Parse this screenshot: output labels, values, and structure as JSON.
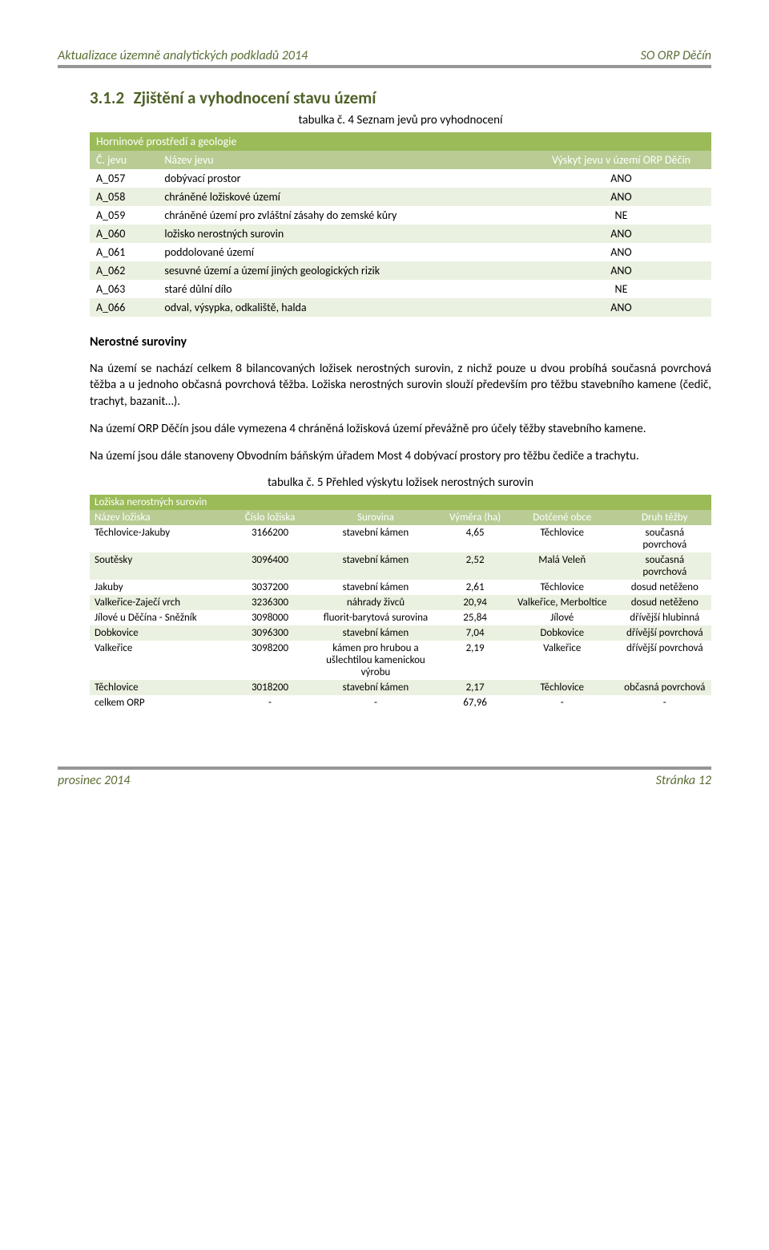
{
  "header": {
    "left": "Aktualizace územně analytických podkladů 2014",
    "right": "SO ORP Děčín"
  },
  "section": {
    "number": "3.1.2",
    "title": "Zjištění a vyhodnocení stavu území"
  },
  "caption1": "tabulka č. 4  Seznam jevů pro vyhodnocení",
  "table1": {
    "title": "Horninové prostředí a geologie",
    "cols": [
      "Č. jevu",
      "Název jevu",
      "Výskyt jevu v území ORP Děčín"
    ],
    "rows": [
      {
        "c1": "A_057",
        "c2": "dobývací prostor",
        "c3": "ANO"
      },
      {
        "c1": "A_058",
        "c2": "chráněné ložiskové území",
        "c3": "ANO"
      },
      {
        "c1": "A_059",
        "c2": "chráněné území pro zvláštní zásahy do zemské kůry",
        "c3": "NE"
      },
      {
        "c1": "A_060",
        "c2": "ložisko nerostných surovin",
        "c3": "ANO"
      },
      {
        "c1": "A_061",
        "c2": "poddolované území",
        "c3": "ANO"
      },
      {
        "c1": "A_062",
        "c2": "sesuvné území a území jiných geologických rizik",
        "c3": "ANO"
      },
      {
        "c1": "A_063",
        "c2": "staré důlní dílo",
        "c3": "NE"
      },
      {
        "c1": "A_066",
        "c2": "odval, výsypka, odkaliště, halda",
        "c3": "ANO"
      }
    ]
  },
  "subhead1": "Nerostné suroviny",
  "para1": "Na území se nachází celkem 8 bilancovaných ložisek nerostných surovin, z nichž pouze u dvou probíhá současná povrchová těžba a u jednoho občasná povrchová těžba. Ložiska nerostných surovin slouží především pro těžbu stavebního kamene (čedič, trachyt, bazanit…).",
  "para2": "Na území ORP Děčín jsou dále vymezena 4 chráněná ložisková území převážně pro účely těžby stavebního kamene.",
  "para3": "Na území jsou dále stanoveny Obvodním báňským úřadem Most 4 dobývací prostory pro těžbu čediče a trachytu.",
  "caption2": "tabulka č. 5  Přehled výskytu ložisek nerostných surovin",
  "table2": {
    "title": "Ložiska nerostných surovin",
    "cols": [
      "Název ložiska",
      "Číslo ložiska",
      "Surovina",
      "Výměra (ha)",
      "Dotčené obce",
      "Druh těžby"
    ],
    "rows": [
      {
        "d1": "Těchlovice-Jakuby",
        "d2": "3166200",
        "d3": "stavební kámen",
        "d4": "4,65",
        "d5": "Těchlovice",
        "d6": "současná povrchová"
      },
      {
        "d1": "Soutěsky",
        "d2": "3096400",
        "d3": "stavební kámen",
        "d4": "2,52",
        "d5": "Malá Veleň",
        "d6": "současná povrchová"
      },
      {
        "d1": "Jakuby",
        "d2": "3037200",
        "d3": "stavební kámen",
        "d4": "2,61",
        "d5": "Těchlovice",
        "d6": "dosud netěženo"
      },
      {
        "d1": "Valkeřice-Zaječí vrch",
        "d2": "3236300",
        "d3": "náhrady živců",
        "d4": "20,94",
        "d5": "Valkeřice, Merboltice",
        "d6": "dosud netěženo"
      },
      {
        "d1": "Jílové u Děčína - Sněžník",
        "d2": "3098000",
        "d3": "fluorit-barytová surovina",
        "d4": "25,84",
        "d5": "Jílové",
        "d6": "dřívější hlubinná"
      },
      {
        "d1": "Dobkovice",
        "d2": "3096300",
        "d3": "stavební kámen",
        "d4": "7,04",
        "d5": "Dobkovice",
        "d6": "dřívější povrchová"
      },
      {
        "d1": "Valkeřice",
        "d2": "3098200",
        "d3": "kámen pro hrubou a ušlechtilou kamenickou výrobu",
        "d4": "2,19",
        "d5": "Valkeřice",
        "d6": "dřívější povrchová"
      },
      {
        "d1": "Těchlovice",
        "d2": "3018200",
        "d3": "stavební kámen",
        "d4": "2,17",
        "d5": "Těchlovice",
        "d6": "občasná povrchová"
      },
      {
        "d1": "celkem ORP",
        "d2": "-",
        "d3": "-",
        "d4": "67,96",
        "d5": "-",
        "d6": "-"
      }
    ]
  },
  "footer": {
    "left": "prosinec 2014",
    "right": "Stránka 12"
  },
  "colors": {
    "headgreen": "#9bbb59",
    "headolive": "#b8cc94",
    "rowalt": "#ebf1e1",
    "headtext": "#5b6e34",
    "rule": "#969696",
    "sectioncolor": "#4F6228"
  }
}
